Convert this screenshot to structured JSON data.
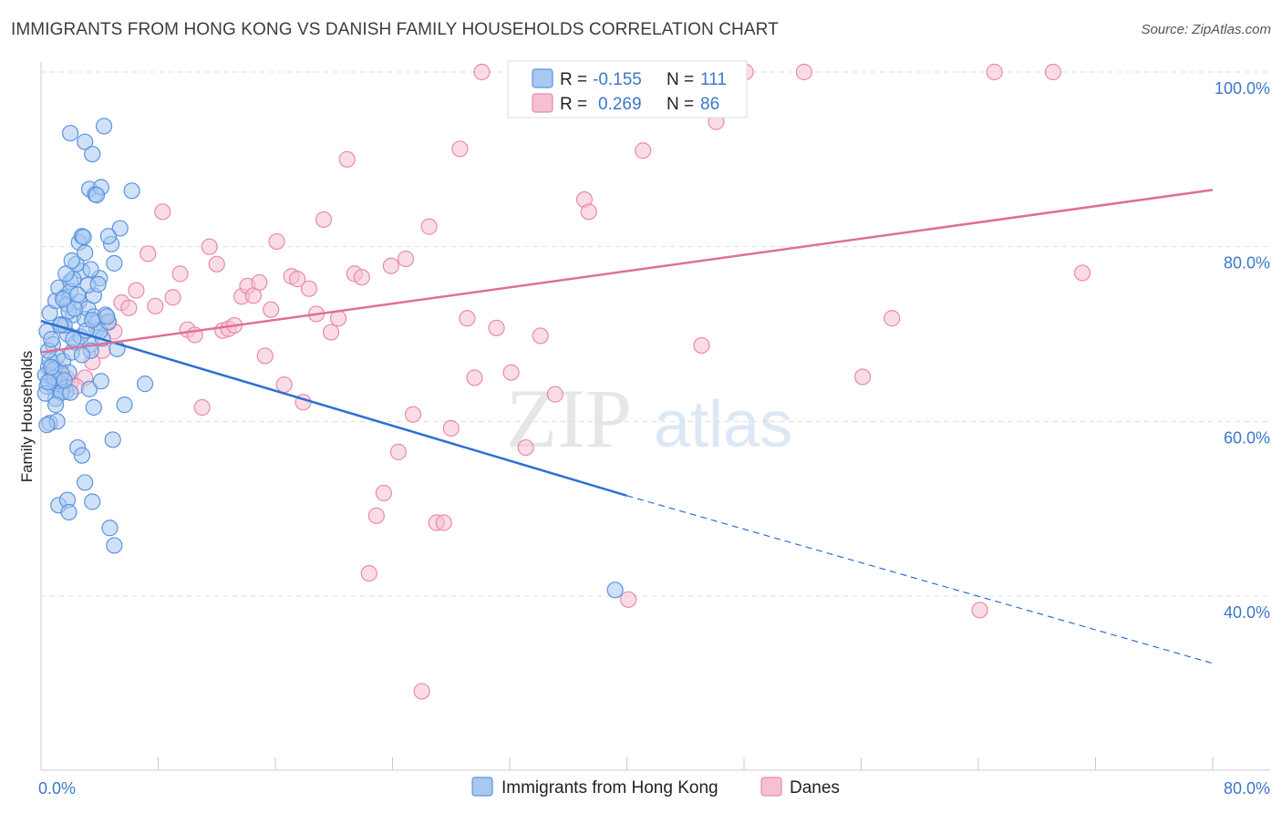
{
  "title": "IMMIGRANTS FROM HONG KONG VS DANISH FAMILY HOUSEHOLDS CORRELATION CHART",
  "source": "Source: ZipAtlas.com",
  "watermark": {
    "zip": "ZIP",
    "atlas": "atlas"
  },
  "colors": {
    "blue_fill": "#a8c8f0",
    "blue_stroke": "#5b93dd",
    "blue_line": "#2e6fd1",
    "pink_fill": "#f6bfd2",
    "pink_stroke": "#e88aab",
    "pink_line": "#e06f98",
    "grid": "#dddddd",
    "tick_text": "#3b78c9"
  },
  "legend": {
    "r_label": "R =",
    "n_label": "N =",
    "blue": {
      "r": "-0.155",
      "n": "111"
    },
    "pink": {
      "r": "0.269",
      "n": "86"
    }
  },
  "chart_data": {
    "type": "scatter",
    "title": "IMMIGRANTS FROM HONG KONG VS DANISH FAMILY HOUSEHOLDS CORRELATION CHART",
    "xlabel": "",
    "ylabel": "Family Households",
    "xlim": [
      0,
      80
    ],
    "ylim": [
      20,
      102
    ],
    "x_tick_labels": [
      "0.0%",
      "80.0%"
    ],
    "y_ticks": [
      40,
      60,
      80,
      100
    ],
    "y_tick_labels": [
      "40.0%",
      "60.0%",
      "80.0%",
      "100.0%"
    ],
    "grid": true,
    "legend_position": "top-center",
    "series": [
      {
        "name": "Immigrants from Hong Kong",
        "color": "#a8c8f0",
        "trend": {
          "x": [
            0,
            40
          ],
          "y": [
            71.5,
            51.5
          ],
          "dashed_to": [
            80,
            32.3
          ]
        },
        "points": [
          [
            0.4,
            70.3
          ],
          [
            0.6,
            72.4
          ],
          [
            0.8,
            68.8
          ],
          [
            1.0,
            73.8
          ],
          [
            1.2,
            75.3
          ],
          [
            1.4,
            71.1
          ],
          [
            1.6,
            74.2
          ],
          [
            1.8,
            70.0
          ],
          [
            2.0,
            76.0
          ],
          [
            2.2,
            72.2
          ],
          [
            2.4,
            69.0
          ],
          [
            2.6,
            73.7
          ],
          [
            2.8,
            77.2
          ],
          [
            3.0,
            71.7
          ],
          [
            3.2,
            72.9
          ],
          [
            3.4,
            68.8
          ],
          [
            3.6,
            74.4
          ],
          [
            3.8,
            70.5
          ],
          [
            4.0,
            76.4
          ],
          [
            4.2,
            69.5
          ],
          [
            0.5,
            66.2
          ],
          [
            0.7,
            65.1
          ],
          [
            0.9,
            63.9
          ],
          [
            1.1,
            67.4
          ],
          [
            1.3,
            64.8
          ],
          [
            1.5,
            66.9
          ],
          [
            1.7,
            63.4
          ],
          [
            1.9,
            65.6
          ],
          [
            2.1,
            67.9
          ],
          [
            0.3,
            65.3
          ],
          [
            0.4,
            64.0
          ],
          [
            0.6,
            67.0
          ],
          [
            0.8,
            65.8
          ],
          [
            1.0,
            62.6
          ],
          [
            1.2,
            64.6
          ],
          [
            0.9,
            66.0
          ],
          [
            0.5,
            68.1
          ],
          [
            1.4,
            65.5
          ],
          [
            0.7,
            69.4
          ],
          [
            0.3,
            63.2
          ],
          [
            1.6,
            71.0
          ],
          [
            1.8,
            73.4
          ],
          [
            2.0,
            74.9
          ],
          [
            2.2,
            76.3
          ],
          [
            2.4,
            78.0
          ],
          [
            2.6,
            80.5
          ],
          [
            2.8,
            81.2
          ],
          [
            3.0,
            79.3
          ],
          [
            3.2,
            75.6
          ],
          [
            3.4,
            77.4
          ],
          [
            3.6,
            72.0
          ],
          [
            3.8,
            71.3
          ],
          [
            4.0,
            70.3
          ],
          [
            4.4,
            72.2
          ],
          [
            4.6,
            71.4
          ],
          [
            4.8,
            80.3
          ],
          [
            5.0,
            78.1
          ],
          [
            5.2,
            68.3
          ],
          [
            5.4,
            82.1
          ],
          [
            6.2,
            86.4
          ],
          [
            1.9,
            72.6
          ],
          [
            2.3,
            72.9
          ],
          [
            2.7,
            69.7
          ],
          [
            3.1,
            70.4
          ],
          [
            3.5,
            71.6
          ],
          [
            3.9,
            75.7
          ],
          [
            1.3,
            71.0
          ],
          [
            1.5,
            74.0
          ],
          [
            1.7,
            76.9
          ],
          [
            2.5,
            74.5
          ],
          [
            2.1,
            78.4
          ],
          [
            2.9,
            81.1
          ],
          [
            3.3,
            86.6
          ],
          [
            3.7,
            86.0
          ],
          [
            4.1,
            86.8
          ],
          [
            4.3,
            93.8
          ],
          [
            2.0,
            93.0
          ],
          [
            3.0,
            92.0
          ],
          [
            3.5,
            90.6
          ],
          [
            3.8,
            85.9
          ],
          [
            4.6,
            81.2
          ],
          [
            2.2,
            69.4
          ],
          [
            0.6,
            59.8
          ],
          [
            1.1,
            60.0
          ],
          [
            2.5,
            57.0
          ],
          [
            2.8,
            56.1
          ],
          [
            3.0,
            53.0
          ],
          [
            1.2,
            50.4
          ],
          [
            1.8,
            51.0
          ],
          [
            1.9,
            49.6
          ],
          [
            3.5,
            50.8
          ],
          [
            4.7,
            47.8
          ],
          [
            5.0,
            45.8
          ],
          [
            5.7,
            61.9
          ],
          [
            7.1,
            64.3
          ],
          [
            3.4,
            68.1
          ],
          [
            4.9,
            57.9
          ],
          [
            3.6,
            61.6
          ],
          [
            3.3,
            63.7
          ],
          [
            2.8,
            67.6
          ],
          [
            1.4,
            63.3
          ],
          [
            0.9,
            65.0
          ],
          [
            0.5,
            64.5
          ],
          [
            0.7,
            66.2
          ],
          [
            1.0,
            61.9
          ],
          [
            0.4,
            59.6
          ],
          [
            2.0,
            63.3
          ],
          [
            1.6,
            64.7
          ],
          [
            4.1,
            64.6
          ],
          [
            39.2,
            40.7
          ],
          [
            4.5,
            72.0
          ]
        ]
      },
      {
        "name": "Danes",
        "color": "#f6bfd2",
        "trend": {
          "x": [
            0,
            80
          ],
          "y": [
            67.9,
            86.5
          ]
        },
        "points": [
          [
            1.2,
            66.0
          ],
          [
            1.5,
            63.9
          ],
          [
            2.0,
            64.4
          ],
          [
            3.0,
            65.0
          ],
          [
            3.5,
            66.8
          ],
          [
            4.2,
            68.1
          ],
          [
            5.0,
            70.3
          ],
          [
            5.5,
            73.6
          ],
          [
            6.0,
            73.0
          ],
          [
            6.5,
            75.0
          ],
          [
            7.3,
            79.2
          ],
          [
            7.8,
            73.2
          ],
          [
            8.3,
            84.0
          ],
          [
            9.0,
            74.2
          ],
          [
            9.5,
            76.9
          ],
          [
            10.0,
            70.5
          ],
          [
            10.5,
            69.9
          ],
          [
            11.0,
            61.6
          ],
          [
            11.5,
            80.0
          ],
          [
            12.0,
            78.0
          ],
          [
            12.4,
            70.4
          ],
          [
            12.8,
            70.6
          ],
          [
            13.2,
            71.0
          ],
          [
            13.7,
            74.3
          ],
          [
            14.1,
            75.5
          ],
          [
            14.5,
            74.4
          ],
          [
            14.9,
            75.9
          ],
          [
            15.3,
            67.5
          ],
          [
            15.7,
            72.8
          ],
          [
            16.1,
            80.6
          ],
          [
            16.6,
            64.2
          ],
          [
            17.1,
            76.6
          ],
          [
            17.5,
            76.3
          ],
          [
            17.9,
            62.2
          ],
          [
            18.3,
            75.2
          ],
          [
            18.8,
            72.3
          ],
          [
            19.3,
            83.1
          ],
          [
            19.8,
            70.2
          ],
          [
            20.3,
            71.8
          ],
          [
            20.9,
            90.0
          ],
          [
            21.4,
            76.9
          ],
          [
            21.9,
            76.5
          ],
          [
            22.4,
            42.6
          ],
          [
            22.9,
            49.2
          ],
          [
            23.4,
            51.8
          ],
          [
            23.9,
            77.8
          ],
          [
            24.4,
            56.5
          ],
          [
            24.9,
            78.6
          ],
          [
            25.4,
            60.8
          ],
          [
            26.0,
            29.1
          ],
          [
            26.5,
            82.3
          ],
          [
            27.0,
            48.4
          ],
          [
            27.5,
            48.4
          ],
          [
            28.0,
            59.2
          ],
          [
            28.6,
            91.2
          ],
          [
            29.1,
            71.8
          ],
          [
            29.6,
            65.0
          ],
          [
            30.1,
            100.0
          ],
          [
            31.1,
            70.7
          ],
          [
            32.1,
            65.6
          ],
          [
            33.1,
            57.0
          ],
          [
            34.1,
            69.8
          ],
          [
            35.1,
            63.1
          ],
          [
            36.1,
            96.1
          ],
          [
            37.1,
            85.4
          ],
          [
            37.4,
            84.0
          ],
          [
            38.1,
            100.0
          ],
          [
            39.1,
            100.0
          ],
          [
            40.1,
            39.6
          ],
          [
            41.1,
            91.0
          ],
          [
            42.1,
            100.0
          ],
          [
            43.1,
            100.0
          ],
          [
            44.1,
            100.0
          ],
          [
            45.1,
            68.7
          ],
          [
            46.1,
            94.3
          ],
          [
            48.1,
            100.0
          ],
          [
            52.1,
            100.0
          ],
          [
            56.1,
            65.1
          ],
          [
            58.1,
            71.8
          ],
          [
            64.1,
            38.4
          ],
          [
            65.1,
            100.0
          ],
          [
            69.1,
            100.0
          ],
          [
            71.1,
            77.0
          ],
          [
            1.8,
            64.9
          ],
          [
            2.4,
            64.0
          ],
          [
            4.6,
            71.3
          ]
        ]
      }
    ]
  },
  "bottom_legend": [
    {
      "label": "Immigrants from Hong Kong",
      "swatch": "blue"
    },
    {
      "label": "Danes",
      "swatch": "pink"
    }
  ]
}
